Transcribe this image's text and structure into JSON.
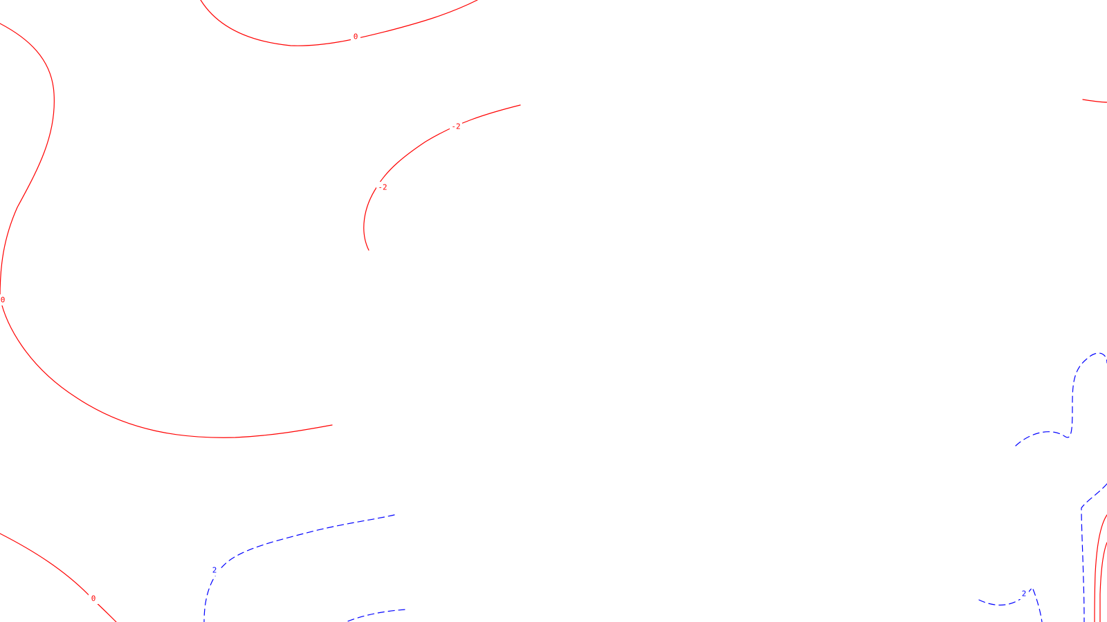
{
  "map": {
    "colors": {
      "background": "#ffffff",
      "negative_or_zero": "#ff0000",
      "positive": "#0000ff"
    },
    "contour_labels": {
      "zero_top": "0",
      "minus2_upper": "-2",
      "minus2_lower": "-2",
      "zero_left": "0",
      "zero_bottom": "0",
      "plus2_left": "2",
      "plus2_right": "2"
    },
    "line_styles": {
      "red": "solid",
      "blue": "dashed"
    }
  }
}
